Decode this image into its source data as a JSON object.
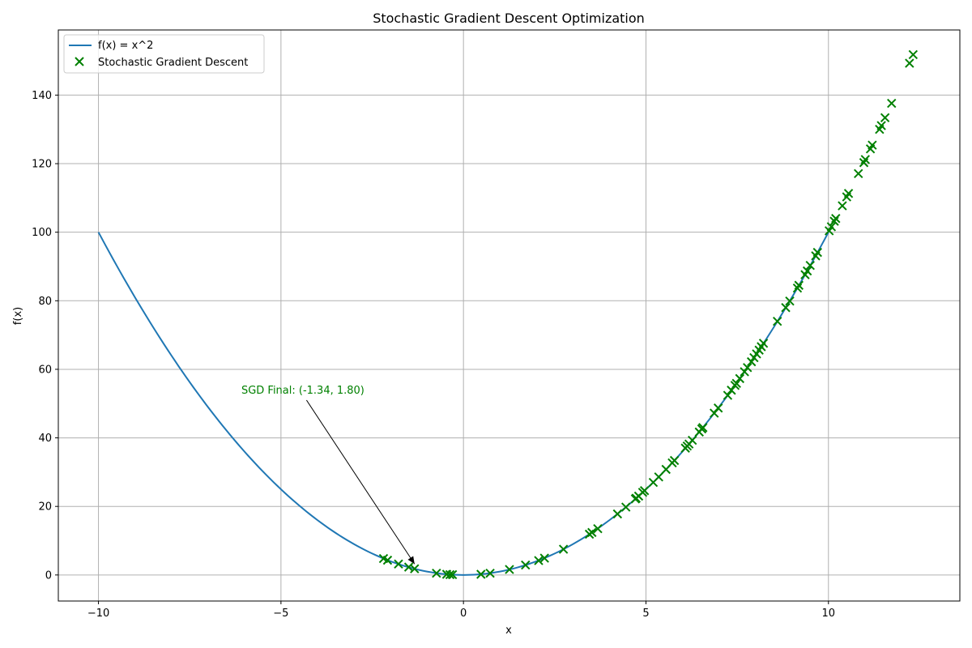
{
  "chart_data": {
    "type": "scatter",
    "title": "Stochastic Gradient Descent Optimization",
    "xlabel": "x",
    "ylabel": "f(x)",
    "xlim": [
      -11.1,
      13.6
    ],
    "ylim": [
      -7.6,
      159.0
    ],
    "xticks": [
      -10,
      -5,
      0,
      5,
      10
    ],
    "yticks": [
      0,
      20,
      40,
      60,
      80,
      100,
      120,
      140
    ],
    "grid": true,
    "legend_position": "upper-left",
    "colors": {
      "curve": "#1f77b4",
      "sgd": "#008000",
      "annotation": "#008000",
      "grid": "#b0b0b0"
    },
    "series": [
      {
        "name": "f(x) = x^2",
        "kind": "line",
        "function": "x^2",
        "x_range": [
          -10,
          10
        ]
      },
      {
        "name": "Stochastic Gradient Descent",
        "kind": "scatter",
        "marker": "x",
        "x": [
          12.32,
          12.22,
          11.73,
          11.55,
          11.45,
          11.4,
          11.2,
          11.15,
          11.01,
          10.97,
          10.82,
          10.55,
          10.5,
          10.38,
          10.2,
          10.16,
          10.08,
          10.02,
          9.7,
          9.65,
          9.5,
          9.42,
          9.36,
          9.19,
          9.15,
          8.94,
          8.83,
          8.6,
          8.22,
          8.16,
          8.1,
          8.03,
          7.96,
          7.89,
          7.78,
          7.7,
          7.57,
          7.48,
          7.44,
          7.34,
          7.24,
          6.98,
          6.87,
          6.56,
          6.53,
          6.46,
          6.27,
          6.18,
          6.13,
          6.08,
          5.78,
          5.72,
          5.55,
          5.35,
          5.2,
          4.96,
          4.91,
          4.8,
          4.73,
          4.71,
          4.45,
          4.22,
          3.68,
          3.52,
          3.45,
          2.74,
          2.22,
          2.06,
          1.7,
          1.26,
          0.73,
          0.48,
          -0.3,
          -0.37,
          -0.46,
          -0.74,
          -1.34,
          -1.5,
          -1.78,
          -2.08,
          -2.19
        ],
        "y": [
          151.8,
          149.3,
          137.6,
          133.4,
          131.1,
          130.0,
          125.4,
          124.3,
          121.2,
          120.3,
          117.1,
          111.3,
          110.3,
          107.7,
          104.0,
          103.2,
          101.6,
          100.4,
          94.1,
          93.1,
          90.3,
          88.7,
          87.6,
          84.5,
          83.7,
          79.9,
          78.0,
          74.0,
          67.6,
          66.6,
          65.6,
          64.5,
          63.4,
          62.2,
          60.5,
          59.3,
          57.3,
          55.9,
          55.3,
          53.9,
          52.4,
          48.7,
          47.2,
          43.0,
          42.6,
          41.7,
          39.3,
          38.2,
          37.6,
          37.0,
          33.4,
          32.7,
          30.8,
          28.6,
          27.0,
          24.6,
          24.1,
          23.0,
          22.4,
          22.2,
          19.8,
          17.8,
          13.5,
          12.4,
          11.9,
          7.5,
          4.9,
          4.2,
          2.9,
          1.6,
          0.5,
          0.2,
          0.1,
          0.1,
          0.2,
          0.5,
          1.8,
          2.3,
          3.2,
          4.3,
          4.8
        ]
      }
    ],
    "annotation": {
      "text": "SGD Final: (-1.34, 1.80)",
      "point": [
        -1.34,
        1.8
      ],
      "text_anchor": [
        -4.3,
        51.0
      ]
    }
  }
}
